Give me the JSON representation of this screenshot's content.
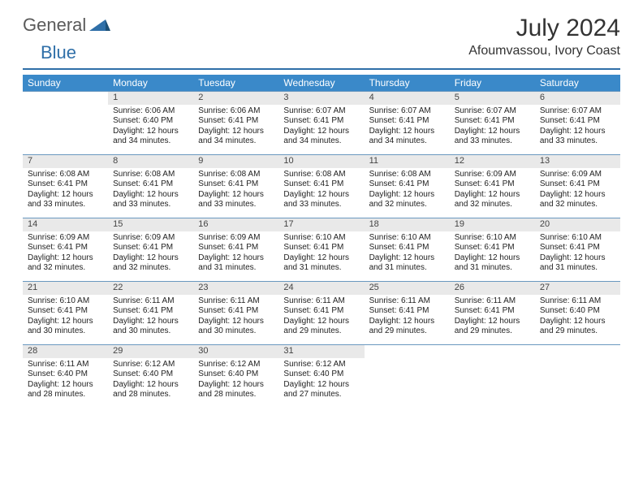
{
  "logo": {
    "general": "General",
    "blue": "Blue"
  },
  "title": "July 2024",
  "location": "Afoumvassou, Ivory Coast",
  "weekdays": [
    "Sunday",
    "Monday",
    "Tuesday",
    "Wednesday",
    "Thursday",
    "Friday",
    "Saturday"
  ],
  "colors": {
    "header_bg": "#3a89c9",
    "accent": "#2f6fa8",
    "daynum_bg": "#e9e9e9",
    "row_divider": "#6a98bf"
  },
  "weeks": [
    [
      null,
      {
        "n": "1",
        "sr": "Sunrise: 6:06 AM",
        "ss": "Sunset: 6:40 PM",
        "dl": "Daylight: 12 hours and 34 minutes."
      },
      {
        "n": "2",
        "sr": "Sunrise: 6:06 AM",
        "ss": "Sunset: 6:41 PM",
        "dl": "Daylight: 12 hours and 34 minutes."
      },
      {
        "n": "3",
        "sr": "Sunrise: 6:07 AM",
        "ss": "Sunset: 6:41 PM",
        "dl": "Daylight: 12 hours and 34 minutes."
      },
      {
        "n": "4",
        "sr": "Sunrise: 6:07 AM",
        "ss": "Sunset: 6:41 PM",
        "dl": "Daylight: 12 hours and 34 minutes."
      },
      {
        "n": "5",
        "sr": "Sunrise: 6:07 AM",
        "ss": "Sunset: 6:41 PM",
        "dl": "Daylight: 12 hours and 33 minutes."
      },
      {
        "n": "6",
        "sr": "Sunrise: 6:07 AM",
        "ss": "Sunset: 6:41 PM",
        "dl": "Daylight: 12 hours and 33 minutes."
      }
    ],
    [
      {
        "n": "7",
        "sr": "Sunrise: 6:08 AM",
        "ss": "Sunset: 6:41 PM",
        "dl": "Daylight: 12 hours and 33 minutes."
      },
      {
        "n": "8",
        "sr": "Sunrise: 6:08 AM",
        "ss": "Sunset: 6:41 PM",
        "dl": "Daylight: 12 hours and 33 minutes."
      },
      {
        "n": "9",
        "sr": "Sunrise: 6:08 AM",
        "ss": "Sunset: 6:41 PM",
        "dl": "Daylight: 12 hours and 33 minutes."
      },
      {
        "n": "10",
        "sr": "Sunrise: 6:08 AM",
        "ss": "Sunset: 6:41 PM",
        "dl": "Daylight: 12 hours and 33 minutes."
      },
      {
        "n": "11",
        "sr": "Sunrise: 6:08 AM",
        "ss": "Sunset: 6:41 PM",
        "dl": "Daylight: 12 hours and 32 minutes."
      },
      {
        "n": "12",
        "sr": "Sunrise: 6:09 AM",
        "ss": "Sunset: 6:41 PM",
        "dl": "Daylight: 12 hours and 32 minutes."
      },
      {
        "n": "13",
        "sr": "Sunrise: 6:09 AM",
        "ss": "Sunset: 6:41 PM",
        "dl": "Daylight: 12 hours and 32 minutes."
      }
    ],
    [
      {
        "n": "14",
        "sr": "Sunrise: 6:09 AM",
        "ss": "Sunset: 6:41 PM",
        "dl": "Daylight: 12 hours and 32 minutes."
      },
      {
        "n": "15",
        "sr": "Sunrise: 6:09 AM",
        "ss": "Sunset: 6:41 PM",
        "dl": "Daylight: 12 hours and 32 minutes."
      },
      {
        "n": "16",
        "sr": "Sunrise: 6:09 AM",
        "ss": "Sunset: 6:41 PM",
        "dl": "Daylight: 12 hours and 31 minutes."
      },
      {
        "n": "17",
        "sr": "Sunrise: 6:10 AM",
        "ss": "Sunset: 6:41 PM",
        "dl": "Daylight: 12 hours and 31 minutes."
      },
      {
        "n": "18",
        "sr": "Sunrise: 6:10 AM",
        "ss": "Sunset: 6:41 PM",
        "dl": "Daylight: 12 hours and 31 minutes."
      },
      {
        "n": "19",
        "sr": "Sunrise: 6:10 AM",
        "ss": "Sunset: 6:41 PM",
        "dl": "Daylight: 12 hours and 31 minutes."
      },
      {
        "n": "20",
        "sr": "Sunrise: 6:10 AM",
        "ss": "Sunset: 6:41 PM",
        "dl": "Daylight: 12 hours and 31 minutes."
      }
    ],
    [
      {
        "n": "21",
        "sr": "Sunrise: 6:10 AM",
        "ss": "Sunset: 6:41 PM",
        "dl": "Daylight: 12 hours and 30 minutes."
      },
      {
        "n": "22",
        "sr": "Sunrise: 6:11 AM",
        "ss": "Sunset: 6:41 PM",
        "dl": "Daylight: 12 hours and 30 minutes."
      },
      {
        "n": "23",
        "sr": "Sunrise: 6:11 AM",
        "ss": "Sunset: 6:41 PM",
        "dl": "Daylight: 12 hours and 30 minutes."
      },
      {
        "n": "24",
        "sr": "Sunrise: 6:11 AM",
        "ss": "Sunset: 6:41 PM",
        "dl": "Daylight: 12 hours and 29 minutes."
      },
      {
        "n": "25",
        "sr": "Sunrise: 6:11 AM",
        "ss": "Sunset: 6:41 PM",
        "dl": "Daylight: 12 hours and 29 minutes."
      },
      {
        "n": "26",
        "sr": "Sunrise: 6:11 AM",
        "ss": "Sunset: 6:41 PM",
        "dl": "Daylight: 12 hours and 29 minutes."
      },
      {
        "n": "27",
        "sr": "Sunrise: 6:11 AM",
        "ss": "Sunset: 6:40 PM",
        "dl": "Daylight: 12 hours and 29 minutes."
      }
    ],
    [
      {
        "n": "28",
        "sr": "Sunrise: 6:11 AM",
        "ss": "Sunset: 6:40 PM",
        "dl": "Daylight: 12 hours and 28 minutes."
      },
      {
        "n": "29",
        "sr": "Sunrise: 6:12 AM",
        "ss": "Sunset: 6:40 PM",
        "dl": "Daylight: 12 hours and 28 minutes."
      },
      {
        "n": "30",
        "sr": "Sunrise: 6:12 AM",
        "ss": "Sunset: 6:40 PM",
        "dl": "Daylight: 12 hours and 28 minutes."
      },
      {
        "n": "31",
        "sr": "Sunrise: 6:12 AM",
        "ss": "Sunset: 6:40 PM",
        "dl": "Daylight: 12 hours and 27 minutes."
      },
      null,
      null,
      null
    ]
  ]
}
